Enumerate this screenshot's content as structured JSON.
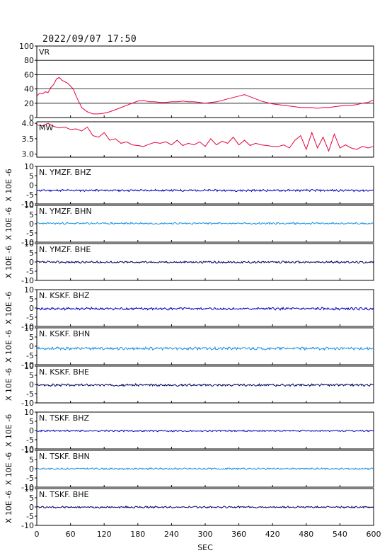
{
  "header": {
    "timestamp": "2022/09/07  17:50"
  },
  "colors": {
    "red": "#e8003c",
    "blue": "#0000b8",
    "lightblue": "#1a8fe0",
    "navy": "#000060",
    "frame": "#000000",
    "grid": "#000000"
  },
  "chart_data": [
    {
      "type": "line",
      "label": "VR",
      "ylim": [
        0,
        100
      ],
      "yticks": [
        0,
        20,
        40,
        60,
        80,
        100
      ],
      "grid": true,
      "color": "red",
      "x": [
        0,
        5,
        10,
        15,
        20,
        25,
        30,
        35,
        40,
        45,
        50,
        55,
        60,
        65,
        70,
        75,
        80,
        90,
        100,
        110,
        120,
        130,
        140,
        150,
        160,
        170,
        180,
        190,
        200,
        210,
        220,
        230,
        240,
        250,
        260,
        270,
        280,
        290,
        300,
        310,
        320,
        330,
        340,
        350,
        360,
        370,
        380,
        390,
        400,
        410,
        420,
        430,
        440,
        450,
        460,
        470,
        480,
        490,
        500,
        510,
        520,
        530,
        540,
        550,
        560,
        570,
        580,
        590,
        600
      ],
      "values": [
        30,
        34,
        33,
        36,
        35,
        42,
        46,
        54,
        56,
        52,
        50,
        48,
        44,
        40,
        30,
        22,
        14,
        8,
        5,
        5,
        6,
        8,
        11,
        14,
        17,
        20,
        23,
        24,
        22,
        22,
        21,
        21,
        22,
        22,
        23,
        22,
        22,
        21,
        20,
        21,
        22,
        24,
        26,
        28,
        30,
        32,
        29,
        26,
        23,
        21,
        19,
        18,
        17,
        16,
        15,
        14,
        14,
        14,
        13,
        14,
        14,
        15,
        16,
        17,
        17,
        18,
        20,
        21,
        25
      ]
    },
    {
      "type": "line",
      "label": "MW",
      "ylim": [
        2.9,
        4.05
      ],
      "yticks": [
        3.0,
        3.5,
        4.0
      ],
      "ytick_labels": [
        "3.0",
        "3.5",
        "4.0"
      ],
      "grid": false,
      "color": "red",
      "x": [
        0,
        10,
        20,
        30,
        40,
        50,
        60,
        70,
        80,
        90,
        100,
        110,
        120,
        130,
        140,
        150,
        160,
        170,
        180,
        190,
        200,
        210,
        220,
        230,
        240,
        250,
        260,
        270,
        280,
        290,
        300,
        310,
        320,
        330,
        340,
        350,
        360,
        370,
        380,
        390,
        400,
        410,
        420,
        430,
        440,
        450,
        460,
        470,
        480,
        490,
        500,
        510,
        520,
        530,
        540,
        550,
        560,
        570,
        580,
        590,
        600
      ],
      "values": [
        3.95,
        3.92,
        4.0,
        3.9,
        3.85,
        3.88,
        3.8,
        3.82,
        3.75,
        3.88,
        3.6,
        3.55,
        3.7,
        3.45,
        3.5,
        3.35,
        3.4,
        3.3,
        3.28,
        3.25,
        3.32,
        3.38,
        3.35,
        3.4,
        3.3,
        3.45,
        3.28,
        3.35,
        3.3,
        3.4,
        3.25,
        3.5,
        3.3,
        3.42,
        3.35,
        3.55,
        3.3,
        3.45,
        3.28,
        3.35,
        3.3,
        3.28,
        3.25,
        3.25,
        3.3,
        3.2,
        3.45,
        3.6,
        3.15,
        3.7,
        3.2,
        3.55,
        3.1,
        3.65,
        3.2,
        3.3,
        3.2,
        3.15,
        3.25,
        3.2,
        3.25
      ]
    },
    {
      "type": "line",
      "label": "N. YMZF. BHZ",
      "ylim": [
        -10,
        10
      ],
      "yticks": [
        -10,
        -5,
        0,
        5,
        10
      ],
      "ylabel": "X 10E -6",
      "color": "blue",
      "baseline": -2.8,
      "noise": 0.45,
      "seed": 11
    },
    {
      "type": "line",
      "label": "N. YMZF. BHN",
      "ylim": [
        -10,
        10
      ],
      "yticks": [
        -10,
        -5,
        0,
        5,
        10
      ],
      "ylabel": "X 10E -6",
      "color": "lightblue",
      "baseline": 0.2,
      "noise": 0.4,
      "seed": 23
    },
    {
      "type": "line",
      "label": "N. YMZF. BHE",
      "ylim": [
        -10,
        10
      ],
      "yticks": [
        -10,
        -5,
        0,
        5,
        10
      ],
      "ylabel": "X 10E -6",
      "color": "navy",
      "baseline": -0.1,
      "noise": 0.45,
      "seed": 37
    },
    {
      "type": "line",
      "label": "N. KSKF. BHZ",
      "ylim": [
        -10,
        10
      ],
      "yticks": [
        -10,
        -5,
        0,
        5,
        10
      ],
      "ylabel": "X 10E -6",
      "color": "blue",
      "baseline": -0.4,
      "noise": 0.55,
      "seed": 41
    },
    {
      "type": "line",
      "label": "N. KSKF. BHN",
      "ylim": [
        -10,
        10
      ],
      "yticks": [
        -10,
        -5,
        0,
        5,
        10
      ],
      "ylabel": "X 10E -6",
      "color": "lightblue",
      "baseline": -1.2,
      "noise": 0.6,
      "seed": 53
    },
    {
      "type": "line",
      "label": "N. KSKF. BHE",
      "ylim": [
        -10,
        10
      ],
      "yticks": [
        -10,
        -5,
        0,
        5,
        10
      ],
      "ylabel": "X 10E -6",
      "color": "navy",
      "baseline": -0.3,
      "noise": 0.5,
      "seed": 67
    },
    {
      "type": "line",
      "label": "N. TSKF. BHZ",
      "ylim": [
        -10,
        10
      ],
      "yticks": [
        -10,
        -5,
        0,
        5,
        10
      ],
      "ylabel": "X 10E -6",
      "color": "blue",
      "baseline": -0.2,
      "noise": 0.35,
      "seed": 71
    },
    {
      "type": "line",
      "label": "N. TSKF. BHN",
      "ylim": [
        -10,
        10
      ],
      "yticks": [
        -10,
        -5,
        0,
        5,
        10
      ],
      "ylabel": "X 10E -6",
      "color": "lightblue",
      "baseline": 0.0,
      "noise": 0.35,
      "seed": 83
    },
    {
      "type": "line",
      "label": "N. TSKF. BHE",
      "ylim": [
        -10,
        10
      ],
      "yticks": [
        -10,
        -5,
        0,
        5,
        10
      ],
      "ylabel": "X 10E -6",
      "color": "navy",
      "baseline": -0.1,
      "noise": 0.4,
      "seed": 97
    }
  ],
  "xaxis": {
    "ticks": [
      0,
      60,
      120,
      180,
      240,
      300,
      360,
      420,
      480,
      540,
      600
    ],
    "xlim": [
      0,
      600
    ],
    "xlabel": "SEC"
  }
}
